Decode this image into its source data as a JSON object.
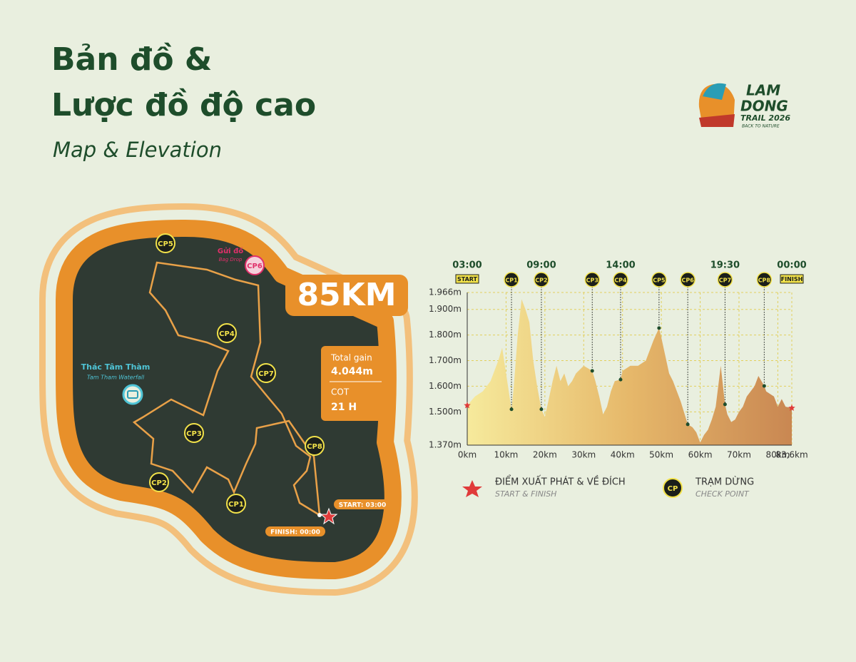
{
  "header": {
    "title_line1": "Bản đồ &",
    "title_line2": "Lược đồ độ cao",
    "subtitle": "Map & Elevation"
  },
  "logo": {
    "line1": "LAM",
    "line2": "DONG",
    "line3": "TRAIL 2026",
    "tagline": "BACK TO NATURE"
  },
  "map": {
    "distance": "85KM",
    "gain_label": "Total gain",
    "gain_value": "4.044m",
    "cot_label": "COT",
    "cot_value": "21 H",
    "waterfall": "Thác Tâm Thàm",
    "waterfall_en": "Tam Tham Waterfall",
    "bag_drop": "Gửi đồ",
    "bag_drop_en": "Bag Drop",
    "checkpoints": [
      "CP1",
      "CP2",
      "CP3",
      "CP4",
      "CP5",
      "CP6",
      "CP7",
      "CP8"
    ],
    "start": "START: 03:00",
    "finish": "FINISH: 00:00"
  },
  "chart_data": {
    "type": "area",
    "x": [
      0,
      2,
      4,
      6,
      8,
      9,
      10,
      11.4,
      12,
      13,
      14,
      15,
      16,
      17,
      18,
      19.1,
      20,
      21,
      22,
      23,
      24,
      25,
      26,
      27,
      28,
      30,
      32.2,
      33,
      34,
      35,
      36,
      37,
      38,
      39.5,
      40,
      42,
      44,
      46,
      48,
      49.4,
      50,
      51,
      52,
      53,
      54,
      55,
      56.8,
      58,
      59,
      60,
      61,
      62,
      63,
      64,
      65.3,
      66.4,
      67,
      68,
      69,
      70,
      71,
      72,
      73,
      74,
      75,
      76.5,
      77,
      78,
      79,
      80,
      81,
      82,
      83.6
    ],
    "values": [
      1525,
      1560,
      1580,
      1620,
      1700,
      1750,
      1650,
      1510,
      1600,
      1800,
      1940,
      1900,
      1850,
      1700,
      1600,
      1510,
      1480,
      1550,
      1620,
      1680,
      1620,
      1650,
      1600,
      1620,
      1650,
      1680,
      1660,
      1620,
      1560,
      1490,
      1520,
      1580,
      1620,
      1626,
      1660,
      1680,
      1680,
      1700,
      1780,
      1827,
      1790,
      1720,
      1650,
      1620,
      1580,
      1540,
      1451,
      1440,
      1420,
      1380,
      1410,
      1430,
      1470,
      1520,
      1680,
      1529,
      1490,
      1460,
      1470,
      1500,
      1520,
      1560,
      1580,
      1600,
      1640,
      1601,
      1580,
      1570,
      1560,
      1520,
      1550,
      1520,
      1515
    ],
    "xlim": [
      0,
      83.6
    ],
    "xticks": [
      {
        "value": 0,
        "label": "0km"
      },
      {
        "value": 10,
        "label": "10km"
      },
      {
        "value": 20,
        "label": "20km"
      },
      {
        "value": 30,
        "label": "30km"
      },
      {
        "value": 40,
        "label": "40km"
      },
      {
        "value": 50,
        "label": "50km"
      },
      {
        "value": 60,
        "label": "60km"
      },
      {
        "value": 70,
        "label": "70km"
      },
      {
        "value": 80,
        "label": "80km"
      },
      {
        "value": 83.6,
        "label": "83,6km"
      }
    ],
    "ylim": [
      1370,
      1966
    ],
    "yticks": [
      {
        "value": 1370,
        "label": "1.370m"
      },
      {
        "value": 1500,
        "label": "1.500m"
      },
      {
        "value": 1600,
        "label": "1.600m"
      },
      {
        "value": 1700,
        "label": "1.700m"
      },
      {
        "value": 1800,
        "label": "1.800m"
      },
      {
        "value": 1900,
        "label": "1.900m"
      },
      {
        "value": 1966,
        "label": "1.966m"
      }
    ],
    "grid": true,
    "checkpoints": [
      {
        "label": "CP1",
        "x": 11.4,
        "value": 1510
      },
      {
        "label": "CP2",
        "x": 19.1,
        "value": 1510
      },
      {
        "label": "CP3",
        "x": 32.2,
        "value": 1660
      },
      {
        "label": "CP4",
        "x": 39.5,
        "value": 1626
      },
      {
        "label": "CP5",
        "x": 49.4,
        "value": 1827
      },
      {
        "label": "CP6",
        "x": 56.8,
        "value": 1451
      },
      {
        "label": "CP7",
        "x": 66.4,
        "value": 1529
      },
      {
        "label": "CP8",
        "x": 76.5,
        "value": 1601
      }
    ],
    "time_marks": [
      {
        "x": 0,
        "label": "03:00",
        "tag": "START"
      },
      {
        "x": 19.1,
        "label": "09:00"
      },
      {
        "x": 39.5,
        "label": "14:00"
      },
      {
        "x": 66.4,
        "label": "19:30"
      },
      {
        "x": 83.6,
        "label": "00:00",
        "tag": "FINISH"
      }
    ]
  },
  "legend": {
    "start_finish": "ĐIỂM XUẤT PHÁT & VỀ ĐÍCH",
    "start_finish_en": "START & FINISH",
    "checkpoint_icon": "CP",
    "checkpoint": "TRẠM DỪNG",
    "checkpoint_en": "CHECK POINT"
  }
}
